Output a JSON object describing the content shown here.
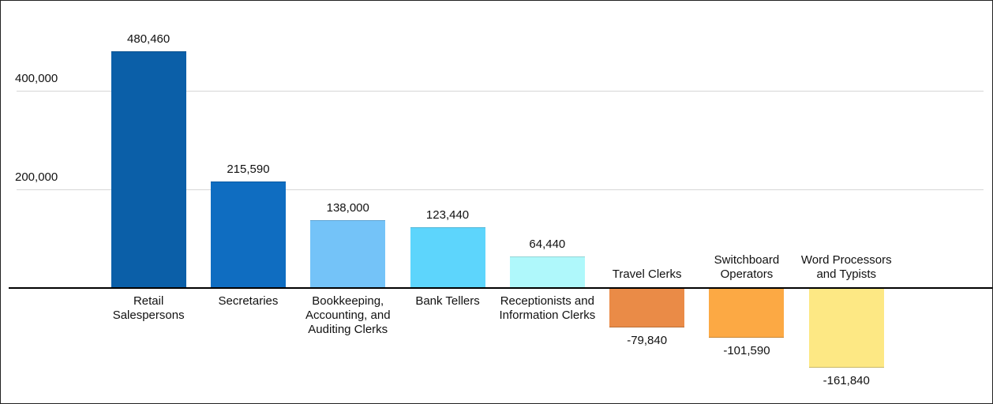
{
  "chart_data": {
    "type": "bar",
    "categories": [
      "Retail Salespersons",
      "Secretaries",
      "Bookkeeping, Accounting, and Auditing Clerks",
      "Bank Tellers",
      "Receptionists and Information Clerks",
      "Travel Clerks",
      "Switchboard Operators",
      "Word Processors and Typists"
    ],
    "values": [
      480460,
      215590,
      138000,
      123440,
      64440,
      -79840,
      -101590,
      -161840
    ],
    "value_labels": [
      "480,460",
      "215,590",
      "138,000",
      "123,440",
      "64,440",
      "-79,840",
      "-101,590",
      "-161,840"
    ],
    "colors": [
      "#0b5fa8",
      "#0f6dc1",
      "#74c3f8",
      "#5dd5fc",
      "#aff8fb",
      "#ea8b47",
      "#fca944",
      "#fde884"
    ],
    "ylim": [
      -200000,
      500000
    ],
    "yticks": [
      {
        "value": 200000,
        "label": "200,000"
      },
      {
        "value": 400000,
        "label": "400,000"
      }
    ],
    "grid": true
  }
}
